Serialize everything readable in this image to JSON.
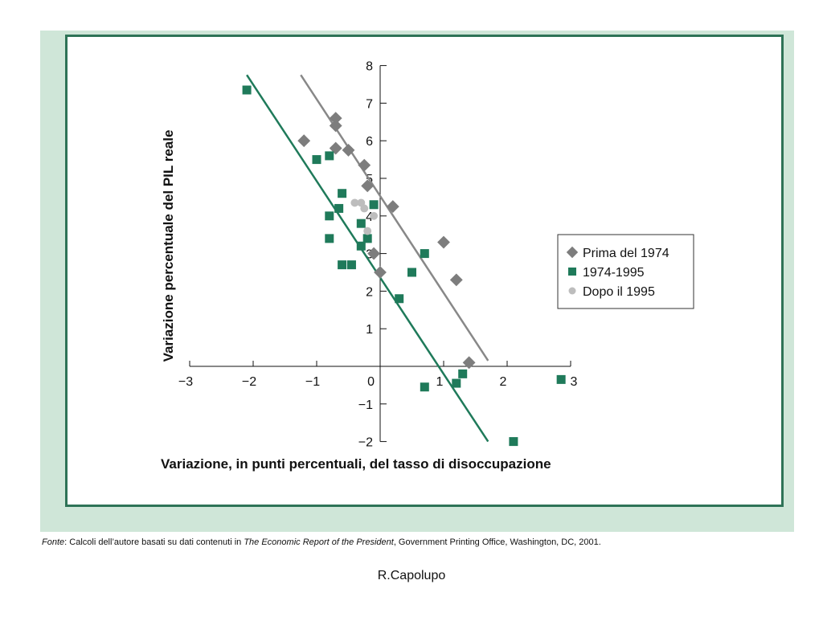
{
  "colors": {
    "outer_panel": "#cfe6d8",
    "frame_border": "#2e7357",
    "series_prima": "#7d7d7d",
    "series_mid": "#1f7a5a",
    "series_dopo": "#bdbdbd",
    "line_prima": "#888888",
    "line_mid": "#1f7a5a"
  },
  "chart_data": {
    "type": "scatter",
    "xlabel": "Variazione, in punti percentuali, del tasso di disoccupazione",
    "ylabel": "Variazione percentuale del PIL reale",
    "xlim": [
      -3,
      3
    ],
    "ylim": [
      -2,
      8
    ],
    "x_ticks": [
      -3,
      -2,
      -1,
      0,
      1,
      2,
      3
    ],
    "y_ticks": [
      -2,
      -1,
      1,
      2,
      3,
      4,
      5,
      6,
      7,
      8
    ],
    "x_tick_labels": [
      "−3",
      "−2",
      "−1",
      "0",
      "1",
      "2",
      "3"
    ],
    "y_tick_labels": [
      "−2",
      "−1",
      "1",
      "2",
      "3",
      "4",
      "5",
      "6",
      "7",
      "8"
    ],
    "legend_position": "right",
    "grid": false,
    "series": [
      {
        "name": "Prima del 1974",
        "marker": "diamond",
        "color": "#7d7d7d",
        "points": [
          [
            -1.2,
            6.0
          ],
          [
            -0.7,
            6.6
          ],
          [
            -0.7,
            6.4
          ],
          [
            -0.7,
            5.8
          ],
          [
            -0.5,
            5.75
          ],
          [
            -0.25,
            5.35
          ],
          [
            -0.2,
            4.8
          ],
          [
            0.2,
            4.25
          ],
          [
            -0.1,
            3.0
          ],
          [
            0.0,
            2.5
          ],
          [
            1.0,
            3.3
          ],
          [
            1.2,
            2.3
          ],
          [
            1.4,
            0.1
          ]
        ]
      },
      {
        "name": "1974-1995",
        "marker": "square",
        "color": "#1f7a5a",
        "points": [
          [
            -2.1,
            7.35
          ],
          [
            -1.0,
            5.5
          ],
          [
            -0.8,
            5.6
          ],
          [
            -0.6,
            4.6
          ],
          [
            -0.65,
            4.2
          ],
          [
            -0.8,
            4.0
          ],
          [
            -0.1,
            4.3
          ],
          [
            -0.3,
            3.8
          ],
          [
            -0.2,
            3.4
          ],
          [
            -0.8,
            3.4
          ],
          [
            -0.3,
            3.2
          ],
          [
            -0.6,
            2.7
          ],
          [
            -0.45,
            2.7
          ],
          [
            0.7,
            3.0
          ],
          [
            0.5,
            2.5
          ],
          [
            0.3,
            1.8
          ],
          [
            1.3,
            -0.2
          ],
          [
            1.2,
            -0.45
          ],
          [
            0.7,
            -0.55
          ],
          [
            2.1,
            -2.0
          ],
          [
            2.85,
            -0.35
          ]
        ]
      },
      {
        "name": "Dopo il 1995",
        "marker": "circle",
        "color": "#bdbdbd",
        "points": [
          [
            -0.4,
            4.35
          ],
          [
            -0.3,
            4.35
          ],
          [
            -0.25,
            4.2
          ],
          [
            -0.1,
            4.0
          ],
          [
            -0.2,
            3.6
          ]
        ]
      }
    ],
    "fit_lines": [
      {
        "color": "#888888",
        "from": [
          -1.25,
          7.75
        ],
        "to": [
          1.7,
          0.15
        ]
      },
      {
        "color": "#1f7a5a",
        "from": [
          -2.1,
          7.75
        ],
        "to": [
          1.7,
          -2.0
        ]
      }
    ]
  },
  "footer": {
    "source_prefix": "Fonte",
    "source_mid": ": Calcoli dell’autore basati su dati contenuti in ",
    "source_title": "The Economic Report of the President",
    "source_suffix": ", Government Printing Office, Washington, DC, 2001.",
    "author": "R.Capolupo"
  }
}
